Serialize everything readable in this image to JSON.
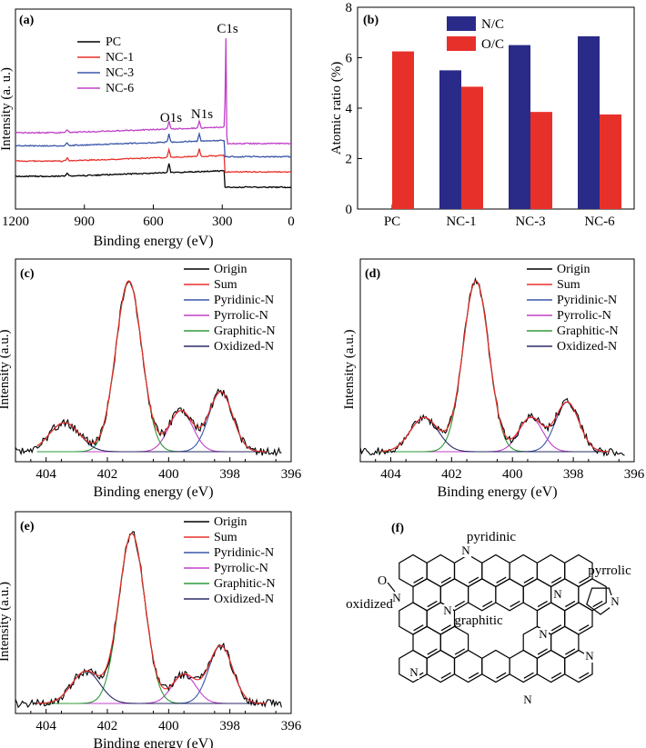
{
  "figure": {
    "panel_a": {
      "label": "(a)",
      "chart_data": {
        "type": "line",
        "title": "",
        "xlabel": "Binding energy (eV)",
        "ylabel": "Intensity (a. u.)",
        "xlim": [
          1200,
          0
        ],
        "xticks": [
          "1200",
          "900",
          "600",
          "300",
          "0"
        ],
        "series": [
          {
            "name": "PC",
            "color": "#000000",
            "baseline": 0.0
          },
          {
            "name": "NC-1",
            "color": "#e8302a",
            "baseline": 0.14
          },
          {
            "name": "NC-3",
            "color": "#3a56a8",
            "baseline": 0.28
          },
          {
            "name": "NC-6",
            "color": "#c040c8",
            "baseline": 0.4
          }
        ],
        "peaks": [
          {
            "label": "O1s",
            "energy": 532
          },
          {
            "label": "N1s",
            "energy": 400
          },
          {
            "label": "C1s",
            "energy": 285
          }
        ]
      }
    },
    "panel_b": {
      "label": "(b)",
      "chart_data": {
        "type": "bar",
        "title": "",
        "xlabel": "",
        "ylabel": "Atomic ratio (%)",
        "ylim": [
          0,
          8
        ],
        "yticks": [
          "0",
          "2",
          "4",
          "6",
          "8"
        ],
        "categories": [
          "PC",
          "NC-1",
          "NC-3",
          "NC-6"
        ],
        "series": [
          {
            "name": "N/C",
            "color": "#2a2a88",
            "values": [
              0,
              5.5,
              6.5,
              6.85
            ]
          },
          {
            "name": "O/C",
            "color": "#e8302a",
            "values": [
              6.25,
              4.85,
              3.85,
              3.75
            ]
          }
        ],
        "legend": "top-center"
      }
    },
    "panel_c": {
      "label": "(c)",
      "chart_data": {
        "type": "line",
        "title": "",
        "xlabel": "Binding energy (eV)",
        "ylabel": "Intensity (a.u.)",
        "xlim": [
          405,
          396
        ],
        "xticks": [
          "404",
          "402",
          "400",
          "398",
          "396"
        ],
        "legend_labels": [
          "Origin",
          "Sum",
          "Pyridinic-N",
          "Pyrrolic-N",
          "Graphitic-N",
          "Oxidized-N"
        ],
        "components": [
          {
            "name": "Pyridinic-N",
            "center": 398.3,
            "height": 0.35,
            "width": 0.55
          },
          {
            "name": "Pyrrolic-N",
            "center": 399.6,
            "height": 0.24,
            "width": 0.55
          },
          {
            "name": "Graphitic-N",
            "center": 401.3,
            "height": 1.0,
            "width": 0.6
          },
          {
            "name": "Oxidized-N",
            "center": 403.4,
            "height": 0.17,
            "width": 0.7
          }
        ]
      }
    },
    "panel_d": {
      "label": "(d)",
      "chart_data": {
        "type": "line",
        "title": "",
        "xlabel": "Binding energy (eV)",
        "ylabel": "Intensity (a.u.)",
        "xlim": [
          405,
          396
        ],
        "xticks": [
          "404",
          "402",
          "400",
          "398",
          "396"
        ],
        "legend_labels": [
          "Origin",
          "Sum",
          "Pyridinic-N",
          "Pyrrolic-N",
          "Graphitic-N",
          "Oxidized-N"
        ],
        "components": [
          {
            "name": "Pyridinic-N",
            "center": 398.2,
            "height": 0.29,
            "width": 0.55
          },
          {
            "name": "Pyrrolic-N",
            "center": 399.4,
            "height": 0.2,
            "width": 0.55
          },
          {
            "name": "Graphitic-N",
            "center": 401.2,
            "height": 1.0,
            "width": 0.6
          },
          {
            "name": "Oxidized-N",
            "center": 402.9,
            "height": 0.2,
            "width": 0.65
          }
        ]
      }
    },
    "panel_e": {
      "label": "(e)",
      "chart_data": {
        "type": "line",
        "title": "",
        "xlabel": "Binding energy (eV)",
        "ylabel": "Intensity (a.u.)",
        "xlim": [
          405,
          396
        ],
        "xticks": [
          "404",
          "402",
          "400",
          "398",
          "396"
        ],
        "legend_labels": [
          "Origin",
          "Sum",
          "Pyridinic-N",
          "Pyrrolic-N",
          "Graphitic-N",
          "Oxidized-N"
        ],
        "components": [
          {
            "name": "Pyridinic-N",
            "center": 398.3,
            "height": 0.34,
            "width": 0.55
          },
          {
            "name": "Pyrrolic-N",
            "center": 399.5,
            "height": 0.17,
            "width": 0.55
          },
          {
            "name": "Graphitic-N",
            "center": 401.2,
            "height": 1.0,
            "width": 0.6
          },
          {
            "name": "Oxidized-N",
            "center": 402.7,
            "height": 0.19,
            "width": 0.65
          }
        ]
      }
    },
    "panel_f": {
      "label": "(f)",
      "annotations": {
        "pyridinic": "pyridinic",
        "pyrrolic": "pyrrolic",
        "oxidized": "oxidized",
        "graphitic": "graphitic",
        "oxygen": "O",
        "nitrogen": "N"
      }
    },
    "colors": {
      "origin": "#000000",
      "sum": "#e8302a",
      "pyridinic": "#3a56a8",
      "pyrrolic": "#c040c8",
      "graphitic": "#2e9a3a",
      "oxidized": "#2a2a66"
    }
  }
}
